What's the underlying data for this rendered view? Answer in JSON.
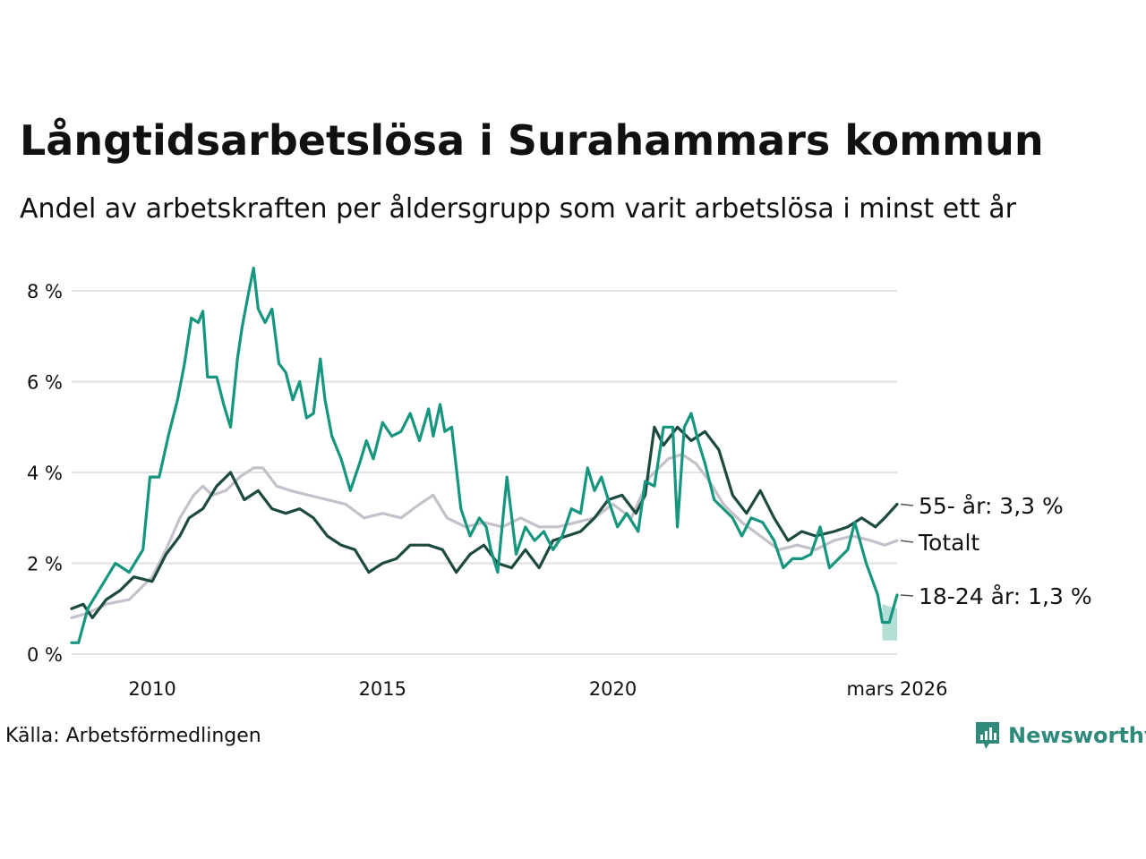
{
  "title": "Långtidsarbetslösa i Surahammars kommun",
  "subtitle": "Andel av arbetskraften per åldersgrupp som varit arbetslösa i minst ett år",
  "source": "Källa: Arbetsförmedlingen",
  "brand": {
    "name": "Newsworthy",
    "icon": "newsworthy-logo-icon"
  },
  "colors": {
    "young": "#16967f",
    "old": "#1d4a40",
    "total": "#c4c1cb",
    "grid": "#e2e2e2",
    "band": "#a7d9d0",
    "brand": "#2f8a7c"
  },
  "chart_data": {
    "type": "line",
    "title": "Långtidsarbetslösa i Surahammars kommun",
    "ylabel": "",
    "xlabel": "",
    "xlim": [
      2008.25,
      2026.17
    ],
    "ylim": [
      0,
      8.5
    ],
    "y_ticks": [
      0,
      2,
      4,
      6,
      8
    ],
    "y_tick_labels": [
      "0 %",
      "2 %",
      "4 %",
      "6 %",
      "8 %"
    ],
    "x_ticks": [
      2010,
      2015,
      2020,
      2026.17
    ],
    "x_tick_labels": [
      "2010",
      "2015",
      "2020",
      "mars 2026"
    ],
    "grid": true,
    "series": [
      {
        "name": "Totalt",
        "end_label": "Totalt",
        "color": "#c4c1cb",
        "points": [
          [
            2008.25,
            0.8
          ],
          [
            2008.6,
            0.9
          ],
          [
            2009.0,
            1.1
          ],
          [
            2009.5,
            1.2
          ],
          [
            2010.0,
            1.7
          ],
          [
            2010.3,
            2.3
          ],
          [
            2010.6,
            3.0
          ],
          [
            2010.9,
            3.5
          ],
          [
            2011.1,
            3.7
          ],
          [
            2011.3,
            3.5
          ],
          [
            2011.6,
            3.6
          ],
          [
            2011.9,
            3.9
          ],
          [
            2012.2,
            4.1
          ],
          [
            2012.4,
            4.1
          ],
          [
            2012.7,
            3.7
          ],
          [
            2013.0,
            3.6
          ],
          [
            2013.4,
            3.5
          ],
          [
            2013.8,
            3.4
          ],
          [
            2014.2,
            3.3
          ],
          [
            2014.6,
            3.0
          ],
          [
            2015.0,
            3.1
          ],
          [
            2015.4,
            3.0
          ],
          [
            2015.8,
            3.3
          ],
          [
            2016.1,
            3.5
          ],
          [
            2016.4,
            3.0
          ],
          [
            2016.8,
            2.8
          ],
          [
            2017.2,
            2.9
          ],
          [
            2017.6,
            2.8
          ],
          [
            2018.0,
            3.0
          ],
          [
            2018.4,
            2.8
          ],
          [
            2018.8,
            2.8
          ],
          [
            2019.2,
            2.9
          ],
          [
            2019.6,
            3.0
          ],
          [
            2020.0,
            3.3
          ],
          [
            2020.4,
            3.0
          ],
          [
            2020.8,
            3.9
          ],
          [
            2021.2,
            4.3
          ],
          [
            2021.5,
            4.4
          ],
          [
            2021.8,
            4.2
          ],
          [
            2022.1,
            3.8
          ],
          [
            2022.4,
            3.3
          ],
          [
            2022.8,
            2.9
          ],
          [
            2023.2,
            2.6
          ],
          [
            2023.6,
            2.3
          ],
          [
            2024.0,
            2.4
          ],
          [
            2024.4,
            2.3
          ],
          [
            2024.8,
            2.5
          ],
          [
            2025.2,
            2.6
          ],
          [
            2025.6,
            2.5
          ],
          [
            2025.9,
            2.4
          ],
          [
            2026.17,
            2.5
          ]
        ]
      },
      {
        "name": "55- år",
        "end_label": "55- år: 3,3 %",
        "color": "#1d4a40",
        "points": [
          [
            2008.25,
            1.0
          ],
          [
            2008.5,
            1.1
          ],
          [
            2008.7,
            0.8
          ],
          [
            2009.0,
            1.2
          ],
          [
            2009.3,
            1.4
          ],
          [
            2009.6,
            1.7
          ],
          [
            2010.0,
            1.6
          ],
          [
            2010.3,
            2.2
          ],
          [
            2010.6,
            2.6
          ],
          [
            2010.8,
            3.0
          ],
          [
            2011.1,
            3.2
          ],
          [
            2011.4,
            3.7
          ],
          [
            2011.7,
            4.0
          ],
          [
            2012.0,
            3.4
          ],
          [
            2012.3,
            3.6
          ],
          [
            2012.6,
            3.2
          ],
          [
            2012.9,
            3.1
          ],
          [
            2013.2,
            3.2
          ],
          [
            2013.5,
            3.0
          ],
          [
            2013.8,
            2.6
          ],
          [
            2014.1,
            2.4
          ],
          [
            2014.4,
            2.3
          ],
          [
            2014.7,
            1.8
          ],
          [
            2015.0,
            2.0
          ],
          [
            2015.3,
            2.1
          ],
          [
            2015.6,
            2.4
          ],
          [
            2016.0,
            2.4
          ],
          [
            2016.3,
            2.3
          ],
          [
            2016.6,
            1.8
          ],
          [
            2016.9,
            2.2
          ],
          [
            2017.2,
            2.4
          ],
          [
            2017.5,
            2.0
          ],
          [
            2017.8,
            1.9
          ],
          [
            2018.1,
            2.3
          ],
          [
            2018.4,
            1.9
          ],
          [
            2018.7,
            2.5
          ],
          [
            2019.0,
            2.6
          ],
          [
            2019.3,
            2.7
          ],
          [
            2019.6,
            3.0
          ],
          [
            2019.9,
            3.4
          ],
          [
            2020.2,
            3.5
          ],
          [
            2020.5,
            3.1
          ],
          [
            2020.7,
            3.5
          ],
          [
            2020.9,
            5.0
          ],
          [
            2021.1,
            4.6
          ],
          [
            2021.4,
            5.0
          ],
          [
            2021.7,
            4.7
          ],
          [
            2022.0,
            4.9
          ],
          [
            2022.3,
            4.5
          ],
          [
            2022.6,
            3.5
          ],
          [
            2022.9,
            3.1
          ],
          [
            2023.2,
            3.6
          ],
          [
            2023.5,
            3.0
          ],
          [
            2023.8,
            2.5
          ],
          [
            2024.1,
            2.7
          ],
          [
            2024.4,
            2.6
          ],
          [
            2024.8,
            2.7
          ],
          [
            2025.1,
            2.8
          ],
          [
            2025.4,
            3.0
          ],
          [
            2025.7,
            2.8
          ],
          [
            2025.9,
            3.0
          ],
          [
            2026.17,
            3.3
          ]
        ]
      },
      {
        "name": "18-24 år",
        "end_label": "18-24 år: 1,3 %",
        "color": "#16967f",
        "points": [
          [
            2008.25,
            0.25
          ],
          [
            2008.4,
            0.25
          ],
          [
            2008.6,
            1.0
          ],
          [
            2008.9,
            1.5
          ],
          [
            2009.2,
            2.0
          ],
          [
            2009.5,
            1.8
          ],
          [
            2009.8,
            2.3
          ],
          [
            2009.95,
            3.9
          ],
          [
            2010.15,
            3.9
          ],
          [
            2010.35,
            4.8
          ],
          [
            2010.55,
            5.6
          ],
          [
            2010.7,
            6.4
          ],
          [
            2010.85,
            7.4
          ],
          [
            2011.0,
            7.3
          ],
          [
            2011.1,
            7.55
          ],
          [
            2011.2,
            6.1
          ],
          [
            2011.4,
            6.1
          ],
          [
            2011.55,
            5.5
          ],
          [
            2011.7,
            5.0
          ],
          [
            2011.85,
            6.5
          ],
          [
            2011.95,
            7.2
          ],
          [
            2012.1,
            8.0
          ],
          [
            2012.2,
            8.5
          ],
          [
            2012.3,
            7.6
          ],
          [
            2012.45,
            7.3
          ],
          [
            2012.6,
            7.6
          ],
          [
            2012.75,
            6.4
          ],
          [
            2012.9,
            6.2
          ],
          [
            2013.05,
            5.6
          ],
          [
            2013.2,
            6.0
          ],
          [
            2013.35,
            5.2
          ],
          [
            2013.5,
            5.3
          ],
          [
            2013.65,
            6.5
          ],
          [
            2013.75,
            5.6
          ],
          [
            2013.9,
            4.8
          ],
          [
            2014.1,
            4.3
          ],
          [
            2014.3,
            3.6
          ],
          [
            2014.5,
            4.2
          ],
          [
            2014.65,
            4.7
          ],
          [
            2014.8,
            4.3
          ],
          [
            2015.0,
            5.1
          ],
          [
            2015.2,
            4.8
          ],
          [
            2015.4,
            4.9
          ],
          [
            2015.6,
            5.3
          ],
          [
            2015.8,
            4.7
          ],
          [
            2016.0,
            5.4
          ],
          [
            2016.1,
            4.8
          ],
          [
            2016.25,
            5.5
          ],
          [
            2016.35,
            4.9
          ],
          [
            2016.5,
            5.0
          ],
          [
            2016.7,
            3.2
          ],
          [
            2016.9,
            2.6
          ],
          [
            2017.1,
            3.0
          ],
          [
            2017.25,
            2.8
          ],
          [
            2017.35,
            2.3
          ],
          [
            2017.5,
            1.8
          ],
          [
            2017.7,
            3.9
          ],
          [
            2017.9,
            2.2
          ],
          [
            2018.1,
            2.8
          ],
          [
            2018.3,
            2.5
          ],
          [
            2018.5,
            2.7
          ],
          [
            2018.7,
            2.3
          ],
          [
            2018.9,
            2.6
          ],
          [
            2019.1,
            3.2
          ],
          [
            2019.3,
            3.1
          ],
          [
            2019.45,
            4.1
          ],
          [
            2019.6,
            3.6
          ],
          [
            2019.75,
            3.9
          ],
          [
            2019.9,
            3.4
          ],
          [
            2020.1,
            2.8
          ],
          [
            2020.3,
            3.1
          ],
          [
            2020.55,
            2.7
          ],
          [
            2020.7,
            3.8
          ],
          [
            2020.9,
            3.7
          ],
          [
            2021.1,
            5.0
          ],
          [
            2021.3,
            5.0
          ],
          [
            2021.4,
            2.8
          ],
          [
            2021.55,
            5.0
          ],
          [
            2021.7,
            5.3
          ],
          [
            2021.85,
            4.7
          ],
          [
            2022.0,
            4.2
          ],
          [
            2022.2,
            3.4
          ],
          [
            2022.4,
            3.2
          ],
          [
            2022.6,
            3.0
          ],
          [
            2022.8,
            2.6
          ],
          [
            2023.0,
            3.0
          ],
          [
            2023.25,
            2.9
          ],
          [
            2023.5,
            2.5
          ],
          [
            2023.7,
            1.9
          ],
          [
            2023.9,
            2.1
          ],
          [
            2024.1,
            2.1
          ],
          [
            2024.3,
            2.2
          ],
          [
            2024.5,
            2.8
          ],
          [
            2024.7,
            1.9
          ],
          [
            2024.9,
            2.1
          ],
          [
            2025.1,
            2.3
          ],
          [
            2025.25,
            2.9
          ],
          [
            2025.5,
            2.0
          ],
          [
            2025.75,
            1.3
          ],
          [
            2025.85,
            0.7
          ],
          [
            2026.0,
            0.7
          ],
          [
            2026.17,
            1.3
          ]
        ]
      }
    ],
    "uncertainty_band": {
      "series": "18-24 år",
      "x": [
        2025.85,
        2026.17
      ],
      "low": [
        0.3,
        0.3
      ],
      "high": [
        1.1,
        1.0
      ]
    }
  }
}
